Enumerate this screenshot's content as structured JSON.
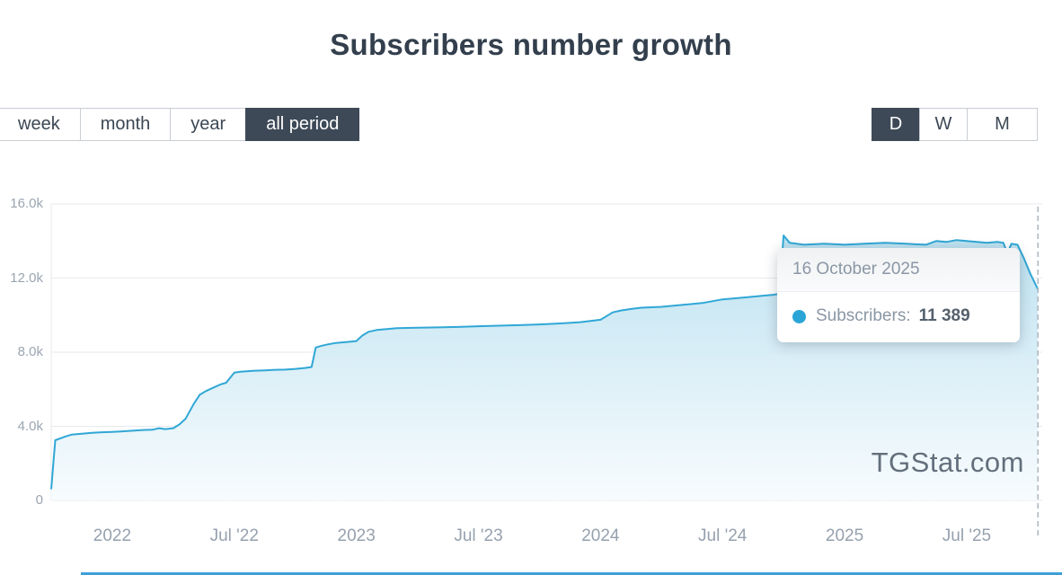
{
  "title": "Subscribers number growth",
  "period_tabs": [
    {
      "label": "week",
      "active": false
    },
    {
      "label": "month",
      "active": false
    },
    {
      "label": "year",
      "active": false
    },
    {
      "label": "all period",
      "active": true
    }
  ],
  "granularity_tabs": [
    {
      "label": "D",
      "active": true
    },
    {
      "label": "W",
      "active": false
    },
    {
      "label": "M",
      "active": false
    }
  ],
  "tooltip": {
    "date": "16 October 2025",
    "series_label": "Subscribers:",
    "value": "11 389"
  },
  "watermark": "TGStat.com",
  "colors": {
    "line": "#30a7d6",
    "area_top": "#b9e0f0",
    "area_bottom": "#f6fbfd",
    "active_tab_bg": "#3d4957",
    "axis_text": "#9aa5b2",
    "grid": "#e7eaed",
    "tooltip_dot": "#2aa5d6",
    "bottom_bar": "#3f9fd8"
  },
  "chart_data": {
    "type": "area",
    "title": "Subscribers number growth",
    "series_name": "Subscribers",
    "x_unit": "months since Oct 2021",
    "ylim": [
      0,
      16500
    ],
    "y_ticks": [
      {
        "label": "16.0k",
        "value": 16000
      },
      {
        "label": "12.0k",
        "value": 12000
      },
      {
        "label": "8.0k",
        "value": 8000
      },
      {
        "label": "4.0k",
        "value": 4000
      },
      {
        "label": "0",
        "value": 0
      }
    ],
    "x_ticks": [
      {
        "label": "2022",
        "m": 3
      },
      {
        "label": "Jul '22",
        "m": 9
      },
      {
        "label": "2023",
        "m": 15
      },
      {
        "label": "Jul '23",
        "m": 21
      },
      {
        "label": "2024",
        "m": 27
      },
      {
        "label": "Jul '24",
        "m": 33
      },
      {
        "label": "2025",
        "m": 39
      },
      {
        "label": "Jul '25",
        "m": 45
      }
    ],
    "points": [
      [
        0,
        600
      ],
      [
        0.2,
        3250
      ],
      [
        0.7,
        3450
      ],
      [
        1,
        3550
      ],
      [
        1.5,
        3600
      ],
      [
        2,
        3650
      ],
      [
        2.5,
        3680
      ],
      [
        3,
        3700
      ],
      [
        3.5,
        3730
      ],
      [
        4,
        3760
      ],
      [
        4.5,
        3800
      ],
      [
        5,
        3820
      ],
      [
        5.3,
        3900
      ],
      [
        5.6,
        3850
      ],
      [
        6,
        3900
      ],
      [
        6.3,
        4100
      ],
      [
        6.6,
        4400
      ],
      [
        7,
        5200
      ],
      [
        7.3,
        5700
      ],
      [
        7.6,
        5900
      ],
      [
        8,
        6100
      ],
      [
        8.3,
        6250
      ],
      [
        8.6,
        6350
      ],
      [
        9,
        6900
      ],
      [
        9.3,
        6950
      ],
      [
        10,
        7000
      ],
      [
        10.5,
        7020
      ],
      [
        11,
        7050
      ],
      [
        11.5,
        7060
      ],
      [
        12,
        7100
      ],
      [
        12.5,
        7150
      ],
      [
        12.8,
        7200
      ],
      [
        13,
        8250
      ],
      [
        13.3,
        8350
      ],
      [
        13.6,
        8420
      ],
      [
        14,
        8500
      ],
      [
        14.5,
        8550
      ],
      [
        15,
        8600
      ],
      [
        15.3,
        8900
      ],
      [
        15.6,
        9100
      ],
      [
        16,
        9200
      ],
      [
        16.5,
        9250
      ],
      [
        17,
        9300
      ],
      [
        18,
        9320
      ],
      [
        19,
        9340
      ],
      [
        20,
        9360
      ],
      [
        21,
        9400
      ],
      [
        22,
        9430
      ],
      [
        23,
        9460
      ],
      [
        24,
        9500
      ],
      [
        25,
        9550
      ],
      [
        26,
        9620
      ],
      [
        27,
        9750
      ],
      [
        27.3,
        9950
      ],
      [
        27.6,
        10150
      ],
      [
        28,
        10250
      ],
      [
        28.5,
        10330
      ],
      [
        29,
        10400
      ],
      [
        30,
        10450
      ],
      [
        31,
        10550
      ],
      [
        32,
        10650
      ],
      [
        33,
        10850
      ],
      [
        34,
        10950
      ],
      [
        35,
        11050
      ],
      [
        35.5,
        11100
      ],
      [
        35.8,
        11150
      ],
      [
        36,
        14300
      ],
      [
        36.3,
        13900
      ],
      [
        37,
        13800
      ],
      [
        38,
        13850
      ],
      [
        39,
        13800
      ],
      [
        40,
        13850
      ],
      [
        41,
        13900
      ],
      [
        42,
        13850
      ],
      [
        43,
        13800
      ],
      [
        43.5,
        14000
      ],
      [
        44,
        13950
      ],
      [
        44.5,
        14050
      ],
      [
        45,
        14000
      ],
      [
        45.5,
        13950
      ],
      [
        46,
        13900
      ],
      [
        46.5,
        13950
      ],
      [
        46.8,
        13900
      ],
      [
        47,
        13350
      ],
      [
        47.2,
        13850
      ],
      [
        47.5,
        13800
      ],
      [
        47.8,
        13100
      ],
      [
        48.1,
        12300
      ],
      [
        48.5,
        11389
      ]
    ],
    "last_point": {
      "date": "16 October 2025",
      "value": 11389
    }
  }
}
